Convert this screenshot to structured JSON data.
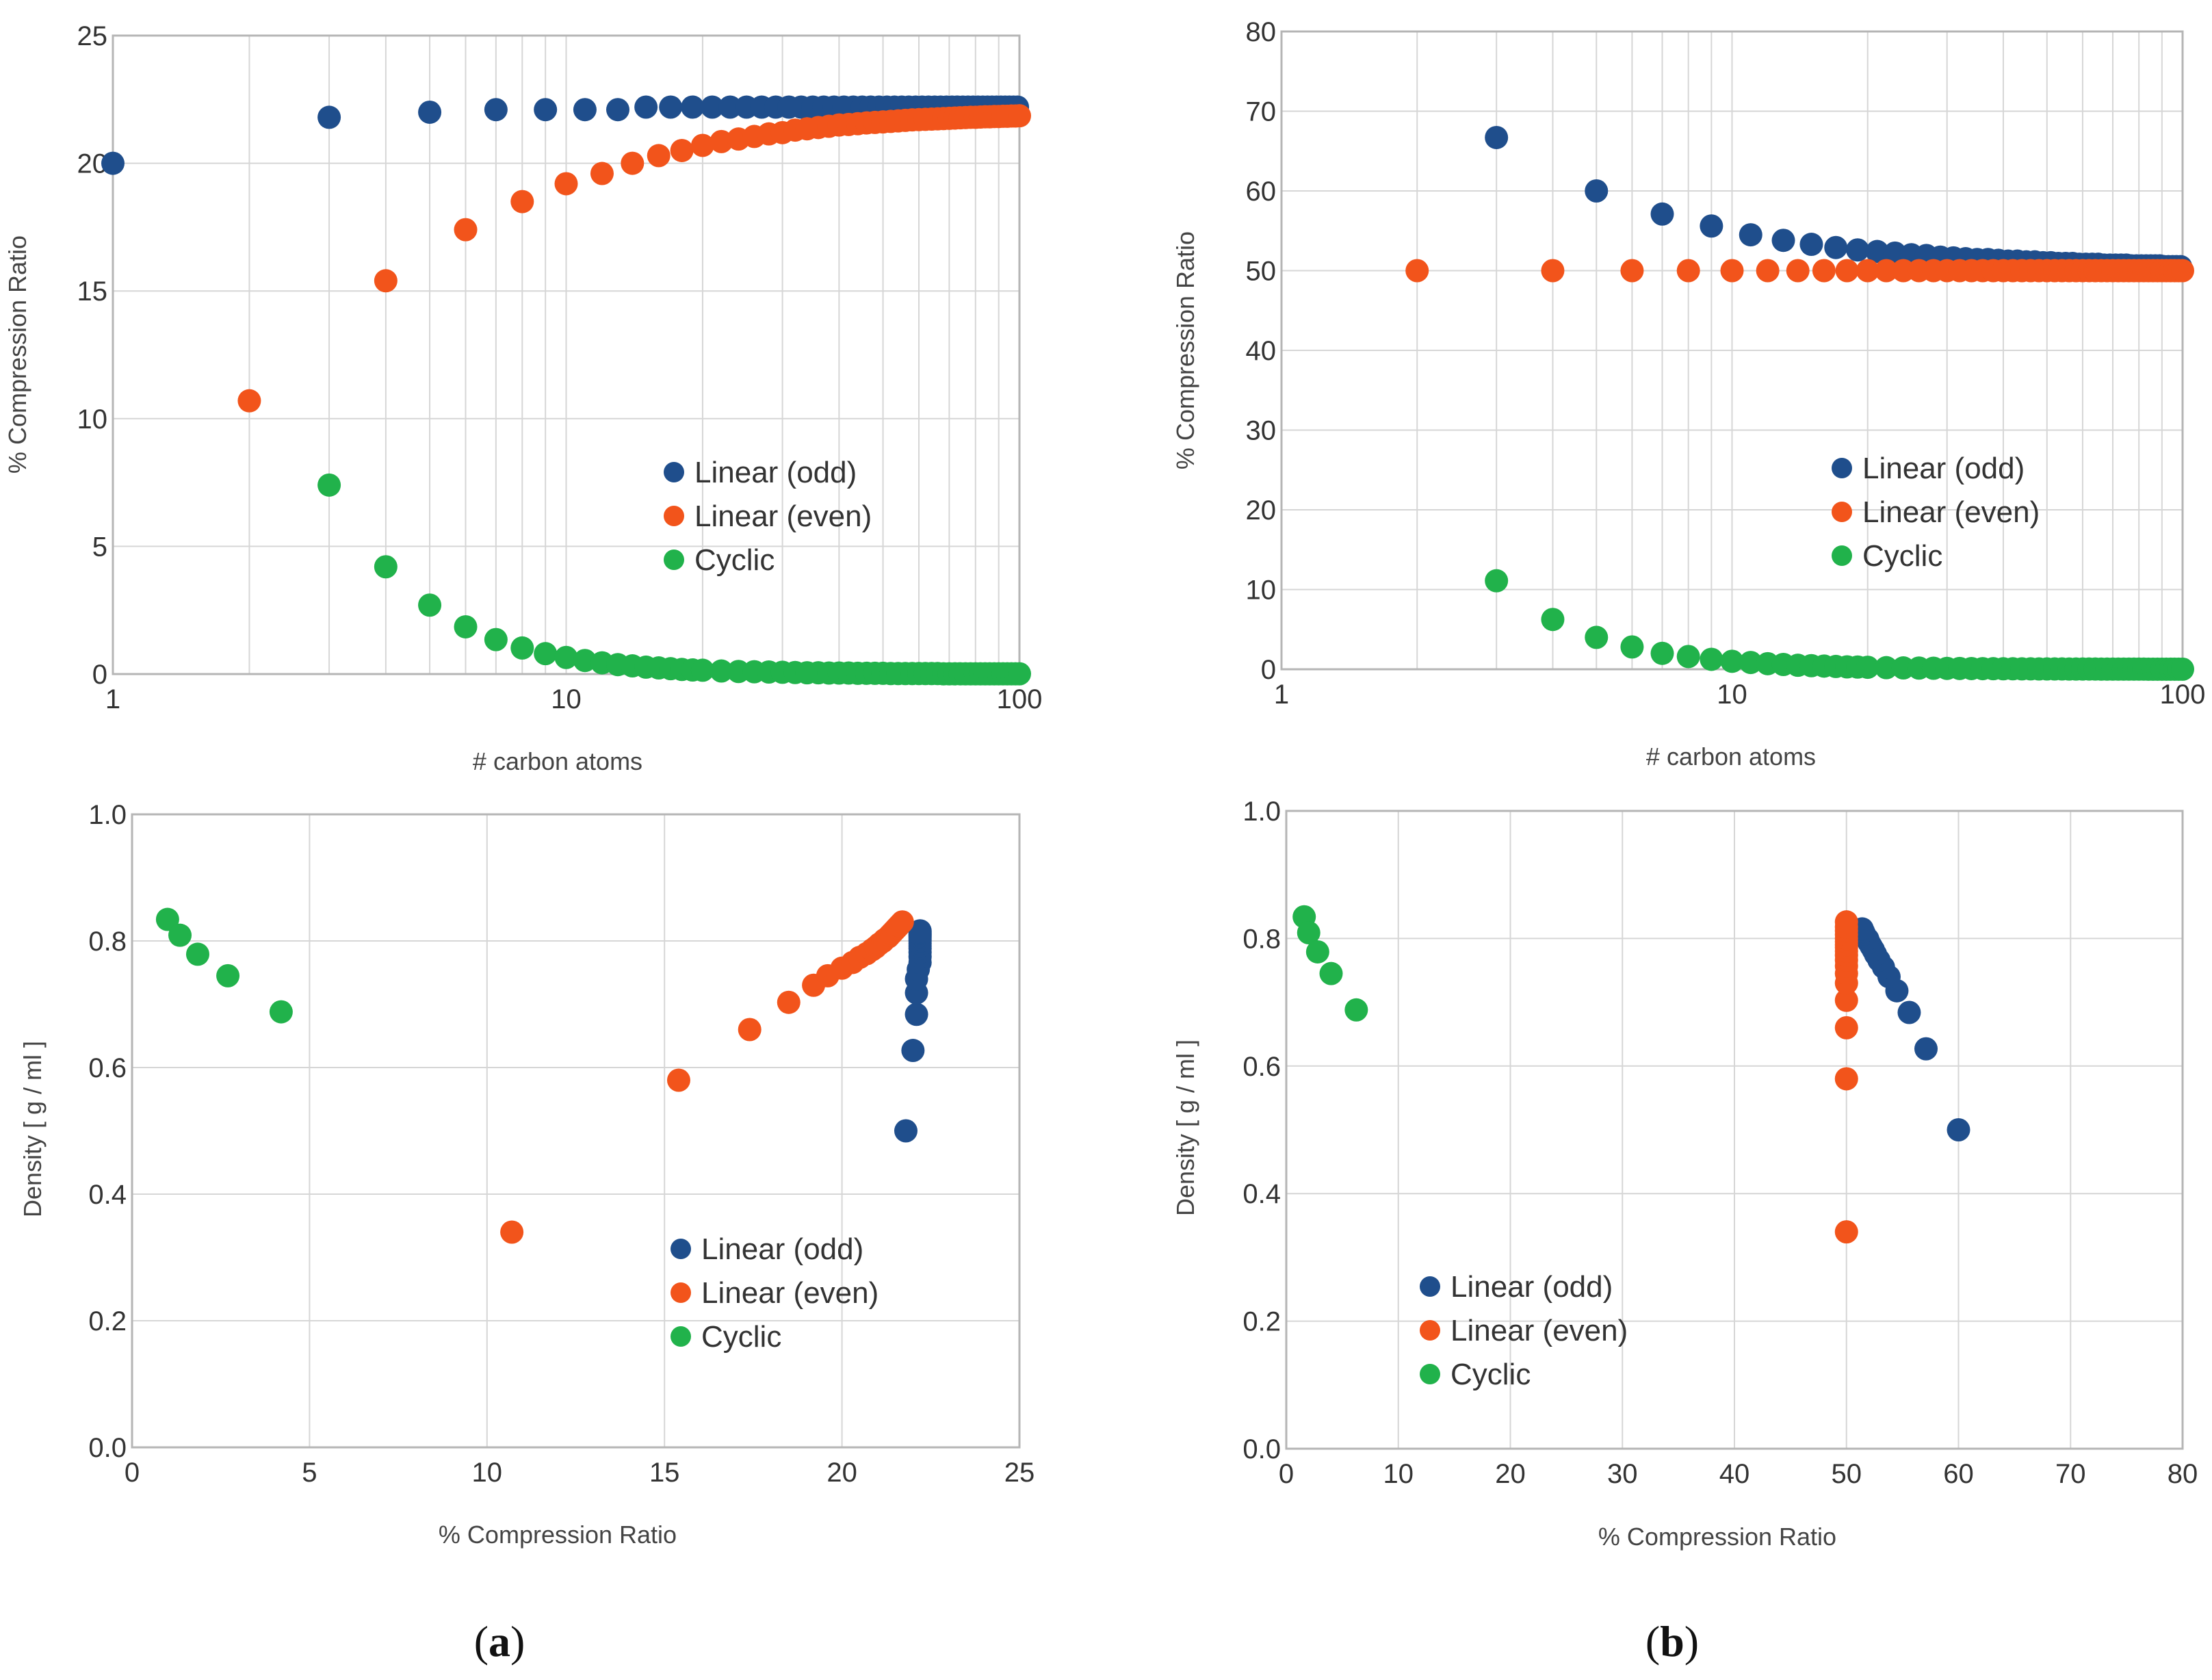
{
  "figure": {
    "panel_labels": [
      {
        "id": "a",
        "open": "(",
        "letter": "a",
        "close": ")"
      },
      {
        "id": "b",
        "open": "(",
        "letter": "b",
        "close": ")"
      }
    ]
  },
  "colors": {
    "linear_odd": "#1f4e8c",
    "linear_even": "#f2541b",
    "cyclic": "#21b24b",
    "grid": "#d6d6d6",
    "frame": "#b5b5b5"
  },
  "chart_data": [
    {
      "id": "a-top",
      "type": "scatter",
      "xscale": "log",
      "xlim": [
        1,
        100
      ],
      "ylim": [
        0,
        25
      ],
      "xticks": [
        1,
        10,
        100
      ],
      "yticks": [
        0,
        5,
        10,
        15,
        20,
        25
      ],
      "xlabel": "# carbon atoms",
      "ylabel": "% Compression Ratio",
      "legend_position": "right-center",
      "series": [
        {
          "name": "Linear (odd)",
          "color": "linear_odd",
          "x": [
            1,
            3,
            5,
            7,
            9,
            11,
            13,
            15,
            17,
            19,
            21,
            23,
            25,
            27,
            29,
            31,
            33,
            35,
            37,
            39,
            41,
            43,
            45,
            47,
            49,
            51,
            53,
            55,
            57,
            59,
            61,
            63,
            65,
            67,
            69,
            71,
            73,
            75,
            77,
            79,
            81,
            83,
            85,
            87,
            89,
            91,
            93,
            95,
            97,
            99
          ],
          "y": [
            20,
            21.8,
            22.0,
            22.1,
            22.1,
            22.1,
            22.1,
            22.2,
            22.2,
            22.2,
            22.2,
            22.2,
            22.2,
            22.2,
            22.2,
            22.2,
            22.2,
            22.2,
            22.2,
            22.2,
            22.2,
            22.2,
            22.2,
            22.2,
            22.2,
            22.2,
            22.2,
            22.2,
            22.2,
            22.2,
            22.2,
            22.2,
            22.2,
            22.2,
            22.2,
            22.2,
            22.2,
            22.2,
            22.2,
            22.2,
            22.2,
            22.2,
            22.2,
            22.2,
            22.2,
            22.2,
            22.2,
            22.2,
            22.2,
            22.2
          ]
        },
        {
          "name": "Linear (even)",
          "color": "linear_even",
          "x": [
            2,
            4,
            6,
            8,
            10,
            12,
            14,
            16,
            18,
            20,
            22,
            24,
            26,
            28,
            30,
            32,
            34,
            36,
            38,
            40,
            42,
            44,
            46,
            48,
            50,
            52,
            54,
            56,
            58,
            60,
            62,
            64,
            66,
            68,
            70,
            72,
            74,
            76,
            78,
            80,
            82,
            84,
            86,
            88,
            90,
            92,
            94,
            96,
            98,
            100
          ],
          "y": [
            10.7,
            15.4,
            17.4,
            18.5,
            19.2,
            19.6,
            20.0,
            20.3,
            20.5,
            20.7,
            20.85,
            20.95,
            21.05,
            21.15,
            21.2,
            21.3,
            21.35,
            21.4,
            21.45,
            21.5,
            21.52,
            21.55,
            21.58,
            21.6,
            21.62,
            21.64,
            21.66,
            21.68,
            21.7,
            21.71,
            21.72,
            21.73,
            21.74,
            21.75,
            21.76,
            21.77,
            21.78,
            21.79,
            21.8,
            21.8,
            21.81,
            21.82,
            21.82,
            21.83,
            21.83,
            21.84,
            21.84,
            21.85,
            21.85,
            21.86
          ]
        },
        {
          "name": "Cyclic",
          "color": "cyclic",
          "x": [
            3,
            4,
            5,
            6,
            7,
            8,
            9,
            10,
            11,
            12,
            13,
            14,
            15,
            16,
            17,
            18,
            19,
            20,
            22,
            24,
            26,
            28,
            30,
            32,
            34,
            36,
            38,
            40,
            42,
            44,
            46,
            48,
            50,
            52,
            54,
            56,
            58,
            60,
            62,
            64,
            66,
            68,
            70,
            72,
            74,
            76,
            78,
            80,
            82,
            84,
            86,
            88,
            90,
            92,
            94,
            96,
            98,
            100
          ],
          "y": [
            7.4,
            4.2,
            2.7,
            1.85,
            1.35,
            1.02,
            0.8,
            0.65,
            0.53,
            0.44,
            0.37,
            0.32,
            0.27,
            0.24,
            0.21,
            0.18,
            0.16,
            0.15,
            0.12,
            0.1,
            0.09,
            0.08,
            0.07,
            0.06,
            0.05,
            0.05,
            0.04,
            0.04,
            0.04,
            0.03,
            0.03,
            0.03,
            0.03,
            0.02,
            0.02,
            0.02,
            0.02,
            0.02,
            0.02,
            0.02,
            0.02,
            0.01,
            0.01,
            0.01,
            0.01,
            0.01,
            0.01,
            0.01,
            0.01,
            0.01,
            0.01,
            0.01,
            0.01,
            0.01,
            0.01,
            0.01,
            0.01,
            0.01
          ]
        }
      ]
    },
    {
      "id": "b-top",
      "type": "scatter",
      "xscale": "log",
      "xlim": [
        1,
        100
      ],
      "ylim": [
        0,
        80
      ],
      "xticks": [
        1,
        10,
        100
      ],
      "yticks": [
        0,
        10,
        20,
        30,
        40,
        50,
        60,
        70,
        80
      ],
      "xlabel": "# carbon atoms",
      "ylabel": "% Compression Ratio",
      "legend_position": "right-center",
      "series": [
        {
          "name": "Linear (odd)",
          "color": "linear_odd",
          "x": [
            3,
            5,
            7,
            9,
            11,
            13,
            15,
            17,
            19,
            21,
            23,
            25,
            27,
            29,
            31,
            33,
            35,
            37,
            39,
            41,
            43,
            45,
            47,
            49,
            51,
            53,
            55,
            57,
            59,
            61,
            63,
            65,
            67,
            69,
            71,
            73,
            75,
            77,
            79,
            81,
            83,
            85,
            87,
            89,
            91,
            93,
            95,
            97,
            99
          ],
          "y": [
            66.7,
            60.0,
            57.1,
            55.6,
            54.5,
            53.8,
            53.3,
            52.9,
            52.6,
            52.4,
            52.2,
            52.0,
            51.9,
            51.7,
            51.6,
            51.5,
            51.4,
            51.4,
            51.3,
            51.2,
            51.2,
            51.1,
            51.1,
            51.0,
            51.0,
            50.9,
            50.9,
            50.9,
            50.8,
            50.8,
            50.8,
            50.8,
            50.7,
            50.7,
            50.7,
            50.7,
            50.7,
            50.6,
            50.6,
            50.6,
            50.6,
            50.6,
            50.6,
            50.6,
            50.5,
            50.5,
            50.5,
            50.5,
            50.5
          ]
        },
        {
          "name": "Linear (even)",
          "color": "linear_even",
          "x": [
            2,
            4,
            6,
            8,
            10,
            12,
            14,
            16,
            18,
            20,
            22,
            24,
            26,
            28,
            30,
            32,
            34,
            36,
            38,
            40,
            42,
            44,
            46,
            48,
            50,
            52,
            54,
            56,
            58,
            60,
            62,
            64,
            66,
            68,
            70,
            72,
            74,
            76,
            78,
            80,
            82,
            84,
            86,
            88,
            90,
            92,
            94,
            96,
            98,
            100
          ],
          "y": [
            50,
            50,
            50,
            50,
            50,
            50,
            50,
            50,
            50,
            50,
            50,
            50,
            50,
            50,
            50,
            50,
            50,
            50,
            50,
            50,
            50,
            50,
            50,
            50,
            50,
            50,
            50,
            50,
            50,
            50,
            50,
            50,
            50,
            50,
            50,
            50,
            50,
            50,
            50,
            50,
            50,
            50,
            50,
            50,
            50,
            50,
            50,
            50,
            50,
            50
          ]
        },
        {
          "name": "Cyclic",
          "color": "cyclic",
          "x": [
            3,
            4,
            5,
            6,
            7,
            8,
            9,
            10,
            11,
            12,
            13,
            14,
            15,
            16,
            17,
            18,
            19,
            20,
            22,
            24,
            26,
            28,
            30,
            32,
            34,
            36,
            38,
            40,
            42,
            44,
            46,
            48,
            50,
            52,
            54,
            56,
            58,
            60,
            62,
            64,
            66,
            68,
            70,
            72,
            74,
            76,
            78,
            80,
            82,
            84,
            86,
            88,
            90,
            92,
            94,
            96,
            98,
            100
          ],
          "y": [
            11.1,
            6.25,
            4.0,
            2.8,
            2.0,
            1.6,
            1.25,
            1.0,
            0.85,
            0.7,
            0.6,
            0.5,
            0.45,
            0.4,
            0.35,
            0.3,
            0.28,
            0.25,
            0.2,
            0.17,
            0.15,
            0.13,
            0.11,
            0.1,
            0.09,
            0.08,
            0.07,
            0.06,
            0.06,
            0.05,
            0.05,
            0.04,
            0.04,
            0.04,
            0.04,
            0.03,
            0.03,
            0.03,
            0.03,
            0.03,
            0.02,
            0.02,
            0.02,
            0.02,
            0.02,
            0.02,
            0.02,
            0.02,
            0.02,
            0.01,
            0.01,
            0.01,
            0.01,
            0.01,
            0.01,
            0.01,
            0.01,
            0.01
          ]
        }
      ]
    },
    {
      "id": "a-bottom",
      "type": "scatter",
      "xscale": "linear",
      "xlim": [
        0,
        25
      ],
      "ylim": [
        0,
        1
      ],
      "xticks": [
        0,
        5,
        10,
        15,
        20,
        25
      ],
      "yticks": [
        0,
        0.2,
        0.4,
        0.6,
        0.8,
        1.0
      ],
      "xtick_labels": [
        "0",
        "5",
        "10",
        "15",
        "20",
        "25"
      ],
      "ytick_labels": [
        "0.0",
        "0.2",
        "0.4",
        "0.6",
        "0.8",
        "1.0"
      ],
      "xlabel": "% Compression Ratio",
      "ylabel": "Density [ g / ml ]",
      "legend_position": "right-lower",
      "series": [
        {
          "name": "Linear (odd)",
          "color": "linear_odd",
          "x": [
            21.8,
            22.0,
            22.1,
            22.1,
            22.1,
            22.15,
            22.2,
            22.2,
            22.2,
            22.2,
            22.2,
            22.2,
            22.2,
            22.2,
            22.2,
            22.2,
            22.2,
            22.2,
            22.2,
            22.2
          ],
          "y": [
            0.5,
            0.627,
            0.684,
            0.718,
            0.74,
            0.755,
            0.766,
            0.775,
            0.782,
            0.788,
            0.792,
            0.796,
            0.8,
            0.803,
            0.806,
            0.808,
            0.81,
            0.812,
            0.814,
            0.816
          ]
        },
        {
          "name": "Linear (even)",
          "color": "linear_even",
          "x": [
            10.7,
            15.4,
            17.4,
            18.5,
            19.2,
            19.6,
            20.0,
            20.3,
            20.5,
            20.7,
            20.85,
            20.95,
            21.05,
            21.15,
            21.2,
            21.3,
            21.35,
            21.4,
            21.45,
            21.5,
            21.55,
            21.6,
            21.65,
            21.7
          ],
          "y": [
            0.34,
            0.58,
            0.66,
            0.703,
            0.73,
            0.745,
            0.757,
            0.766,
            0.774,
            0.78,
            0.786,
            0.79,
            0.795,
            0.799,
            0.802,
            0.806,
            0.809,
            0.812,
            0.815,
            0.818,
            0.821,
            0.824,
            0.827,
            0.83
          ]
        },
        {
          "name": "Cyclic",
          "color": "cyclic",
          "x": [
            1.0,
            1.35,
            1.85,
            2.7,
            4.2
          ],
          "y": [
            0.834,
            0.809,
            0.779,
            0.745,
            0.688
          ]
        }
      ]
    },
    {
      "id": "b-bottom",
      "type": "scatter",
      "xscale": "linear",
      "xlim": [
        0,
        80
      ],
      "ylim": [
        0,
        1
      ],
      "xticks": [
        0,
        10,
        20,
        30,
        40,
        50,
        60,
        70,
        80
      ],
      "yticks": [
        0,
        0.2,
        0.4,
        0.6,
        0.8,
        1.0
      ],
      "xtick_labels": [
        "0",
        "10",
        "20",
        "30",
        "40",
        "50",
        "60",
        "70",
        "80"
      ],
      "ytick_labels": [
        "0.0",
        "0.2",
        "0.4",
        "0.6",
        "0.8",
        "1.0"
      ],
      "xlabel": "% Compression Ratio",
      "ylabel": "Density [ g / ml ]",
      "legend_position": "left-lower",
      "series": [
        {
          "name": "Linear (odd)",
          "color": "linear_odd",
          "x": [
            60.0,
            57.1,
            55.6,
            54.5,
            53.8,
            53.3,
            52.9,
            52.6,
            52.4,
            52.2,
            52.0,
            51.9,
            51.7,
            51.6,
            51.5,
            51.4
          ],
          "y": [
            0.5,
            0.627,
            0.684,
            0.718,
            0.74,
            0.755,
            0.766,
            0.775,
            0.782,
            0.788,
            0.794,
            0.799,
            0.803,
            0.807,
            0.811,
            0.815
          ]
        },
        {
          "name": "Linear (even)",
          "color": "linear_even",
          "x": [
            50,
            50,
            50,
            50,
            50,
            50,
            50,
            50,
            50,
            50,
            50,
            50,
            50,
            50,
            50,
            50,
            50,
            50
          ],
          "y": [
            0.34,
            0.58,
            0.66,
            0.703,
            0.73,
            0.745,
            0.757,
            0.766,
            0.774,
            0.78,
            0.786,
            0.79,
            0.795,
            0.8,
            0.806,
            0.812,
            0.818,
            0.826
          ]
        },
        {
          "name": "Cyclic",
          "color": "cyclic",
          "x": [
            1.6,
            2.0,
            2.8,
            4.0,
            6.25
          ],
          "y": [
            0.834,
            0.809,
            0.779,
            0.745,
            0.688
          ]
        }
      ]
    }
  ]
}
